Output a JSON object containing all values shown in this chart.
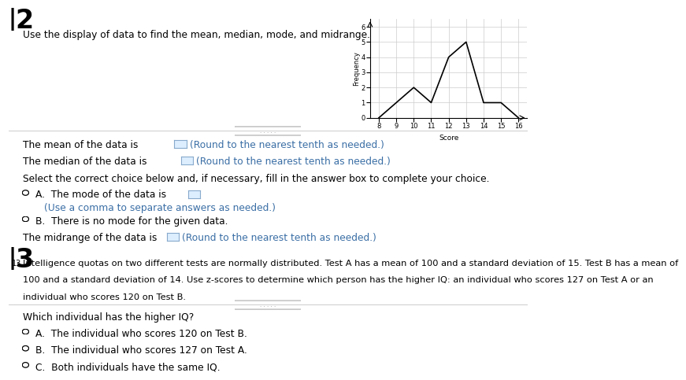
{
  "background_color": "#ffffff",
  "graph": {
    "x": [
      8,
      9,
      10,
      11,
      12,
      13,
      14,
      15,
      16
    ],
    "y": [
      0,
      1,
      2,
      1,
      4,
      5,
      1,
      1,
      0
    ],
    "xlabel": "Score",
    "ylabel": "Frequency",
    "xlim": [
      7.5,
      16.5
    ],
    "ylim": [
      0,
      6.5
    ],
    "xticks": [
      8,
      9,
      10,
      11,
      12,
      13,
      14,
      15,
      16
    ],
    "yticks": [
      0,
      1,
      2,
      3,
      4,
      5,
      6
    ]
  },
  "q12_instruction": "Use the display of data to find the mean, median, mode, and midrange.",
  "mean_text": "The mean of the data is",
  "mean_suffix": "(Round to the nearest tenth as needed.)",
  "median_text": "The median of the data is",
  "median_suffix": "(Round to the nearest tenth as needed.)",
  "select_text": "Select the correct choice below and, if necessary, fill in the answer box to complete your choice.",
  "choice_A_text": "The mode of the data is",
  "choice_A_suffix": "(Use a comma to separate answers as needed.)",
  "choice_B_text": "There is no mode for the given data.",
  "midrange_text": "The midrange of the data is",
  "midrange_suffix": "(Round to the nearest tenth as needed.)",
  "q13_body1": "Intelligence quotas on two different tests are normally distributed. Test A has a mean of 100 and a standard deviation of 15. Test B has a mean of",
  "q13_body2": "100 and a standard deviation of 14. Use z-scores to determine which person has the higher IQ: an individual who scores 127 on Test A or an",
  "q13_body3": "individual who scores 120 on Test B.",
  "q13_question": "Which individual has the higher IQ?",
  "q13_A": "The individual who scores 120 on Test B.",
  "q13_B": "The individual who scores 127 on Test A.",
  "q13_C": "Both individuals have the same IQ.",
  "blue_color": "#3a6ea5",
  "gray_color": "#aaaaaa",
  "box_face": "#ddeeff",
  "box_edge": "#88aacc"
}
